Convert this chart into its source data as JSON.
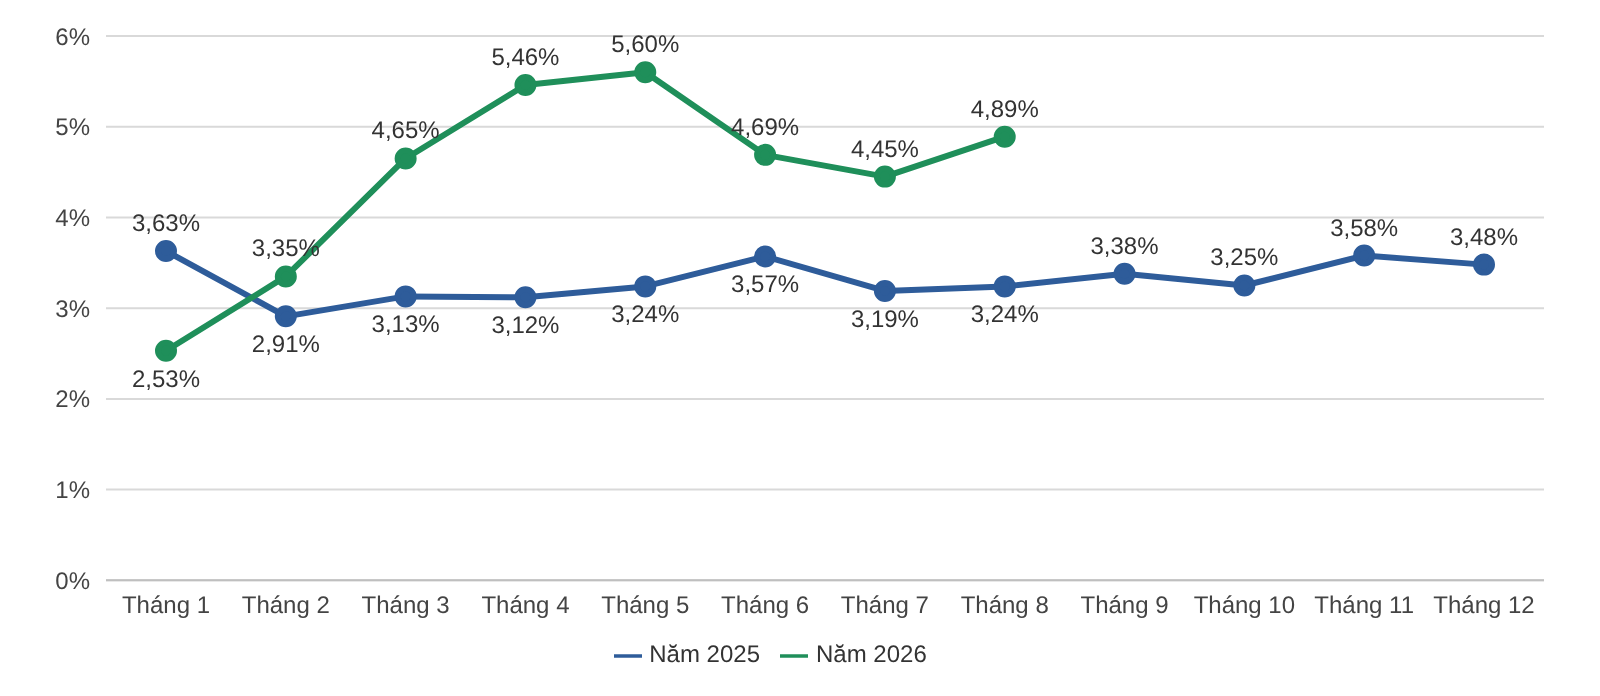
{
  "chart_data": {
    "type": "line",
    "categories": [
      "Tháng 1",
      "Tháng 2",
      "Tháng 3",
      "Tháng 4",
      "Tháng 5",
      "Tháng 6",
      "Tháng 7",
      "Tháng 8",
      "Tháng 9",
      "Tháng 10",
      "Tháng 11",
      "Tháng 12"
    ],
    "series": [
      {
        "name": "Năm 2025",
        "color": "#2e5c9a",
        "values": [
          3.63,
          2.91,
          3.13,
          3.12,
          3.24,
          3.57,
          3.19,
          3.24,
          3.38,
          3.25,
          3.58,
          3.48
        ],
        "value_labels": [
          "3,63%",
          "2,91%",
          "3,13%",
          "3,12%",
          "3,24%",
          "3,57%",
          "3,19%",
          "3,24%",
          "3,38%",
          "3,25%",
          "3,58%",
          "3,48%"
        ]
      },
      {
        "name": "Năm 2026",
        "color": "#1f8f5a",
        "values": [
          2.53,
          3.35,
          4.65,
          5.46,
          5.6,
          4.69,
          4.45,
          4.89,
          null,
          null,
          null,
          null
        ],
        "value_labels": [
          "2,53%",
          "3,35%",
          "4,65%",
          "5,46%",
          "5,60%",
          "4,69%",
          "4,45%",
          "4,89%",
          null,
          null,
          null,
          null
        ]
      }
    ],
    "ylim": [
      0,
      6
    ],
    "yticks": [
      {
        "value": 0,
        "label": "0%"
      },
      {
        "value": 1,
        "label": "1%"
      },
      {
        "value": 2,
        "label": "2%"
      },
      {
        "value": 3,
        "label": "3%"
      },
      {
        "value": 4,
        "label": "4%"
      },
      {
        "value": 5,
        "label": "5%"
      },
      {
        "value": 6,
        "label": "6%"
      }
    ],
    "grid": "y",
    "legend": "bottom",
    "marker": "circle",
    "line_style": "solid"
  }
}
